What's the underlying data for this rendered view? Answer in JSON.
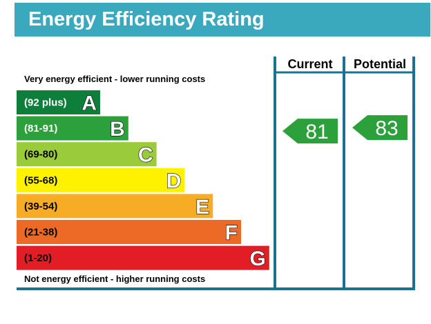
{
  "title": "Energy Efficiency Rating",
  "top_caption": "Very energy efficient - lower running costs",
  "bottom_caption": "Not energy efficient - higher running costs",
  "columns": {
    "current": "Current",
    "potential": "Potential"
  },
  "chart_data": {
    "type": "bar",
    "categories": [
      "A",
      "B",
      "C",
      "D",
      "E",
      "F",
      "G"
    ],
    "bands": [
      {
        "letter": "A",
        "range": "(92 plus)",
        "min": 92,
        "max": 100,
        "color": "#008054",
        "text_color": "#ffffff"
      },
      {
        "letter": "B",
        "range": "(81-91)",
        "min": 81,
        "max": 91,
        "color": "#19b459",
        "text_color": "#ffffff"
      },
      {
        "letter": "C",
        "range": "(69-80)",
        "min": 69,
        "max": 80,
        "color": "#8dce46",
        "text_color": "#000000"
      },
      {
        "letter": "D",
        "range": "(55-68)",
        "min": 55,
        "max": 68,
        "color": "#ffd500",
        "text_color": "#000000"
      },
      {
        "letter": "E",
        "range": "(39-54)",
        "min": 39,
        "max": 54,
        "color": "#fcaa65",
        "text_color": "#000000"
      },
      {
        "letter": "F",
        "range": "(21-38)",
        "min": 21,
        "max": 38,
        "color": "#ef8023",
        "text_color": "#000000"
      },
      {
        "letter": "G",
        "range": "(1-20)",
        "min": 1,
        "max": 20,
        "color": "#e9153b",
        "text_color": "#000000"
      }
    ],
    "series": [
      {
        "name": "Current",
        "value": 81,
        "band": "B",
        "color": "#19b459"
      },
      {
        "name": "Potential",
        "value": 83,
        "band": "B",
        "color": "#19b459"
      }
    ],
    "colors": {
      "title_bar": "#3aa8bd",
      "frame": "#1a7290",
      "band_a": "#0e7f3b",
      "band_b": "#2ca03a",
      "band_c": "#9acb3b",
      "band_d": "#fff200",
      "band_e": "#f6ad25",
      "band_f": "#ec6a25",
      "band_g": "#e31d25",
      "indicator": "#2ca03a"
    }
  }
}
